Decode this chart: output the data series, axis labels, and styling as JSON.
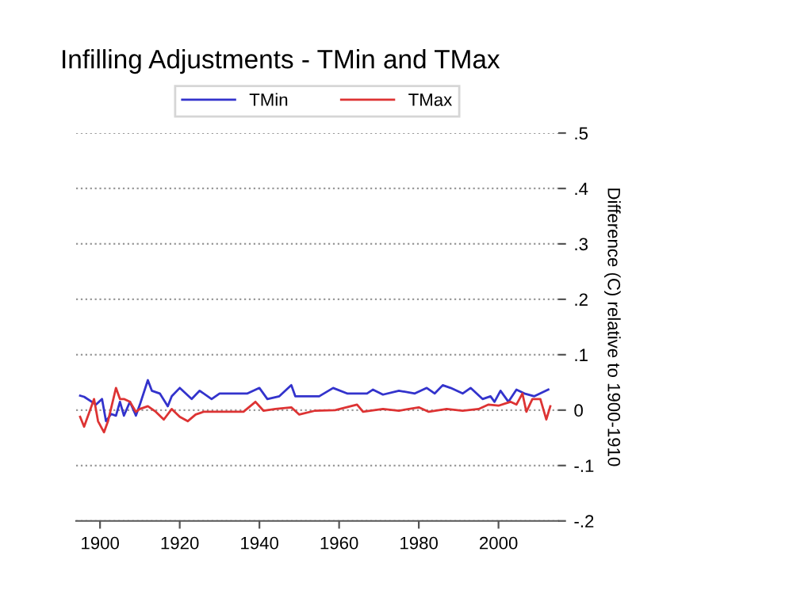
{
  "chart_data": {
    "type": "line",
    "title": "Infilling Adjustments - TMin and TMax",
    "ylabel": "Difference (C) relative to 1900-1910",
    "series": [
      {
        "name": "TMin",
        "color": "#3333cc",
        "x": [
          1895,
          1896,
          1899,
          1900.5,
          1901.5,
          1902.8,
          1904,
          1905,
          1906,
          1907.5,
          1909,
          1910,
          1912,
          1913,
          1915,
          1917,
          1918,
          1920,
          1923,
          1925,
          1928,
          1930,
          1934,
          1937,
          1940,
          1942,
          1945,
          1948,
          1949,
          1952,
          1955,
          1958.5,
          1962,
          1967,
          1968.5,
          1971,
          1975,
          1979,
          1982,
          1984,
          1986,
          1988,
          1991,
          1993,
          1996,
          1998,
          1999,
          2000.5,
          2002.5,
          2004.5,
          2006.5,
          2009,
          2012.5
        ],
        "values": [
          0.026,
          0.024,
          0.01,
          0.02,
          -0.02,
          -0.007,
          -0.01,
          0.015,
          -0.01,
          0.015,
          -0.01,
          0.01,
          0.054,
          0.035,
          0.03,
          0.007,
          0.025,
          0.04,
          0.02,
          0.035,
          0.02,
          0.03,
          0.03,
          0.03,
          0.04,
          0.02,
          0.025,
          0.045,
          0.025,
          0.025,
          0.025,
          0.04,
          0.03,
          0.03,
          0.037,
          0.028,
          0.035,
          0.03,
          0.04,
          0.03,
          0.045,
          0.04,
          0.03,
          0.04,
          0.02,
          0.025,
          0.015,
          0.035,
          0.015,
          0.037,
          0.03,
          0.025,
          0.037
        ]
      },
      {
        "name": "TMax",
        "color": "#dd3333",
        "x": [
          1895,
          1896,
          1898.5,
          1899.5,
          1901,
          1902,
          1904,
          1905,
          1906,
          1907.5,
          1909,
          1910,
          1912,
          1914,
          1916,
          1918,
          1920,
          1922,
          1924,
          1926,
          1928,
          1932,
          1936,
          1939,
          1941,
          1944,
          1948,
          1950,
          1954,
          1959,
          1964.5,
          1966,
          1971,
          1975,
          1980,
          1982.5,
          1987,
          1991,
          1995,
          1997.5,
          2000,
          2003,
          2004.5,
          2006,
          2007,
          2008.5,
          2010.5,
          2012,
          2013
        ],
        "values": [
          -0.012,
          -0.03,
          0.02,
          -0.02,
          -0.04,
          -0.02,
          0.04,
          0.02,
          0.02,
          0.015,
          -0.003,
          0.002,
          0.007,
          -0.003,
          -0.017,
          0.002,
          -0.012,
          -0.02,
          -0.008,
          -0.003,
          -0.003,
          -0.003,
          -0.003,
          0.015,
          -0.001,
          0.002,
          0.005,
          -0.008,
          -0.001,
          0,
          0.01,
          -0.003,
          0.002,
          -0.001,
          0.005,
          -0.003,
          0.002,
          -0.001,
          0.002,
          0.01,
          0.008,
          0.015,
          0.01,
          0.03,
          -0.003,
          0.02,
          0.02,
          -0.017,
          0.007
        ]
      }
    ],
    "xlim": [
      1894,
      2015
    ],
    "xticks": [
      1900,
      1920,
      1940,
      1960,
      1980,
      2000
    ],
    "ylim": [
      -0.2,
      0.5
    ],
    "yticks": [
      {
        "value": -0.2,
        "label": "-.2"
      },
      {
        "value": -0.1,
        "label": "-.1"
      },
      {
        "value": 0,
        "label": "0"
      },
      {
        "value": 0.1,
        "label": ".1"
      },
      {
        "value": 0.2,
        "label": ".2"
      },
      {
        "value": 0.3,
        "label": ".3"
      },
      {
        "value": 0.4,
        "label": ".4"
      },
      {
        "value": 0.5,
        "label": ".5"
      }
    ],
    "grid": "y",
    "legend": "top",
    "marker": "none",
    "line_style": "solid"
  }
}
